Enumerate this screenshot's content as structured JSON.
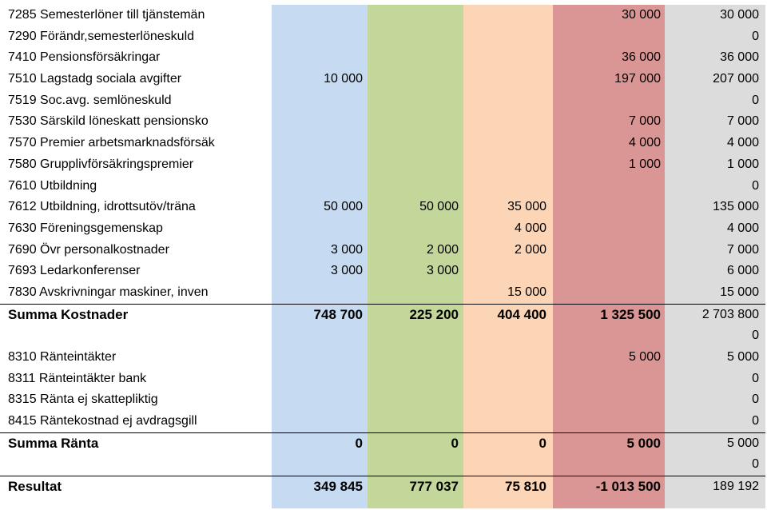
{
  "rows": [
    {
      "label": "7285 Semesterlöner till tjänstemän",
      "v1": "",
      "v2": "",
      "v3": "",
      "v4": "30 000",
      "v5": "30 000"
    },
    {
      "label": "7290 Förändr,semesterlöneskuld",
      "v1": "",
      "v2": "",
      "v3": "",
      "v4": "",
      "v5": "0"
    },
    {
      "label": "7410 Pensionsförsäkringar",
      "v1": "",
      "v2": "",
      "v3": "",
      "v4": "36 000",
      "v5": "36 000"
    },
    {
      "label": "7510 Lagstadg sociala avgifter",
      "v1": "10 000",
      "v2": "",
      "v3": "",
      "v4": "197 000",
      "v5": "207 000"
    },
    {
      "label": "7519 Soc.avg. semlöneskuld",
      "v1": "",
      "v2": "",
      "v3": "",
      "v4": "",
      "v5": "0"
    },
    {
      "label": "7530 Särskild löneskatt pensionsko",
      "v1": "",
      "v2": "",
      "v3": "",
      "v4": "7 000",
      "v5": "7 000"
    },
    {
      "label": "7570 Premier arbetsmarknadsförsäk",
      "v1": "",
      "v2": "",
      "v3": "",
      "v4": "4 000",
      "v5": "4 000"
    },
    {
      "label": "7580 Grupplivförsäkringspremier",
      "v1": "",
      "v2": "",
      "v3": "",
      "v4": "1 000",
      "v5": "1 000"
    },
    {
      "label": "7610 Utbildning",
      "v1": "",
      "v2": "",
      "v3": "",
      "v4": "",
      "v5": "0"
    },
    {
      "label": "7612 Utbildning, idrottsutöv/träna",
      "v1": "50 000",
      "v2": "50 000",
      "v3": "35 000",
      "v4": "",
      "v5": "135 000"
    },
    {
      "label": "7630 Föreningsgemenskap",
      "v1": "",
      "v2": "",
      "v3": "4 000",
      "v4": "",
      "v5": "4 000"
    },
    {
      "label": "7690 Övr personalkostnader",
      "v1": "3 000",
      "v2": "2 000",
      "v3": "2 000",
      "v4": "",
      "v5": "7 000"
    },
    {
      "label": "7693 Ledarkonferenser",
      "v1": "3 000",
      "v2": "3 000",
      "v3": "",
      "v4": "",
      "v5": "6 000"
    },
    {
      "label": "7830 Avskrivningar maskiner, inven",
      "v1": "",
      "v2": "",
      "v3": "15 000",
      "v4": "",
      "v5": "15 000"
    },
    {
      "label": "Summa Kostnader",
      "v1": "748 700",
      "v2": "225 200",
      "v3": "404 400",
      "v4": "1 325 500",
      "v5": "2 703 800"
    },
    {
      "label": "",
      "v1": "",
      "v2": "",
      "v3": "",
      "v4": "",
      "v5": "0"
    },
    {
      "label": "8310 Ränteintäkter",
      "v1": "",
      "v2": "",
      "v3": "",
      "v4": "5 000",
      "v5": "5 000"
    },
    {
      "label": "8311 Ränteintäkter bank",
      "v1": "",
      "v2": "",
      "v3": "",
      "v4": "",
      "v5": "0"
    },
    {
      "label": "8315 Ränta ej skattepliktig",
      "v1": "",
      "v2": "",
      "v3": "",
      "v4": "",
      "v5": "0"
    },
    {
      "label": "8415 Räntekostnad ej avdragsgill",
      "v1": "",
      "v2": "",
      "v3": "",
      "v4": "",
      "v5": "0"
    },
    {
      "label": "Summa Ränta",
      "v1": "0",
      "v2": "0",
      "v3": "0",
      "v4": "5 000",
      "v5": "5 000"
    },
    {
      "label": "",
      "v1": "",
      "v2": "",
      "v3": "",
      "v4": "",
      "v5": "0"
    },
    {
      "label": "Resultat",
      "v1": "349 845",
      "v2": "777 037",
      "v3": "75 810",
      "v4": "-1 013 500",
      "v5": "189 192"
    }
  ],
  "colors": {
    "col1": "#c6dbf1",
    "col2": "#c4d79b",
    "col3": "#fbd5b5",
    "col4": "#da9694",
    "col5": "#dcdcdc"
  }
}
